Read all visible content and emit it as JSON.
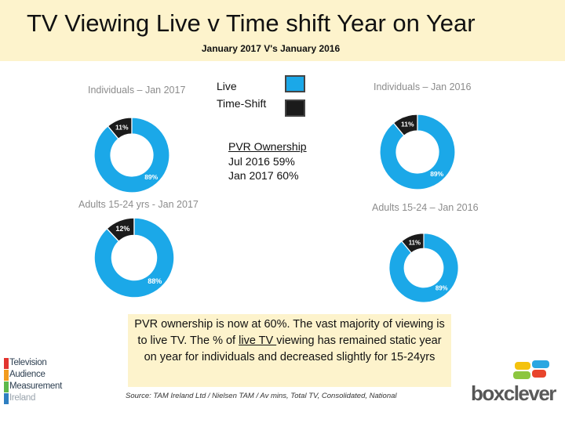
{
  "title": "TV Viewing  Live v Time shift Year on Year",
  "subtitle": "January 2017 V's January 2016",
  "legend": {
    "live_label": "Live",
    "timeshift_label": "Time-Shift",
    "live_color": "#1ba8e8",
    "timeshift_color": "#1b1b1b"
  },
  "pvr": {
    "heading": "PVR Ownership",
    "line1": "Jul 2016 59%",
    "line2": "Jan 2017 60%"
  },
  "callout": {
    "part1": "PVR ownership is now at 60%. The vast majority of viewing is to live TV. The % of ",
    "underlined": "live TV ",
    "part2": "viewing has remained static year on year for individuals and decreased slightly for 15-24yrs"
  },
  "source": "Source: TAM Ireland Ltd / Nielsen TAM / Av mins, Total TV, Consolidated, National",
  "logos": {
    "tam_line1": "Television",
    "tam_line2": "Audience",
    "tam_line3": "Measurement",
    "tam_line4": "Ireland",
    "boxclever_box": "box",
    "boxclever_clever": "clever"
  },
  "chart_data": [
    {
      "type": "pie",
      "title": "Individuals – Jan 2017",
      "categories": [
        "Live",
        "Time-Shift"
      ],
      "values": [
        89,
        11
      ],
      "labels": [
        "89%",
        "11%"
      ]
    },
    {
      "type": "pie",
      "title": "Individuals – Jan 2016",
      "categories": [
        "Live",
        "Time-Shift"
      ],
      "values": [
        89,
        11
      ],
      "labels": [
        "89%",
        "11%"
      ]
    },
    {
      "type": "pie",
      "title": "Adults 15-24 yrs - Jan 2017",
      "categories": [
        "Live",
        "Time-Shift"
      ],
      "values": [
        88,
        12
      ],
      "labels": [
        "88%",
        "12%"
      ]
    },
    {
      "type": "pie",
      "title": "Adults 15-24 – Jan 2016",
      "categories": [
        "Live",
        "Time-Shift"
      ],
      "values": [
        89,
        11
      ],
      "labels": [
        "89%",
        "11%"
      ]
    }
  ]
}
